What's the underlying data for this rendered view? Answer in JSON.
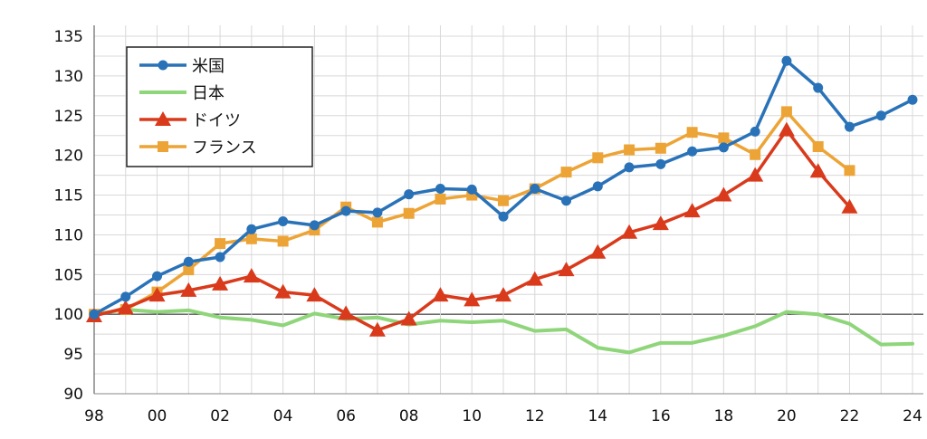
{
  "chart_data": {
    "type": "line",
    "title": "",
    "xlabel": "",
    "ylabel": "",
    "x": [
      "98",
      "99",
      "00",
      "01",
      "02",
      "03",
      "04",
      "05",
      "06",
      "07",
      "08",
      "09",
      "10",
      "11",
      "12",
      "13",
      "14",
      "15",
      "16",
      "17",
      "18",
      "19",
      "20",
      "21",
      "22",
      "23",
      "24"
    ],
    "x_tick_labels": [
      "98",
      "00",
      "02",
      "04",
      "06",
      "08",
      "10",
      "12",
      "14",
      "16",
      "18",
      "20",
      "22",
      "24"
    ],
    "y_ticks": [
      90,
      95,
      100,
      105,
      110,
      115,
      120,
      125,
      130,
      135
    ],
    "ylim": [
      90,
      135
    ],
    "grid": true,
    "legend_position": "top-left",
    "series": [
      {
        "name": "米国",
        "color": "#2a72b8",
        "marker": "circle",
        "values": [
          100,
          102.2,
          104.8,
          106.6,
          107.2,
          110.7,
          111.7,
          111.2,
          113.0,
          112.8,
          115.1,
          115.8,
          115.7,
          112.3,
          115.8,
          114.3,
          116.1,
          118.5,
          118.9,
          120.5,
          121.0,
          123.0,
          131.9,
          128.5,
          123.6,
          125.0,
          127.0
        ]
      },
      {
        "name": "日本",
        "color": "#8fd57a",
        "marker": "none",
        "values": [
          100,
          100.6,
          100.3,
          100.5,
          99.6,
          99.3,
          98.6,
          100.1,
          99.4,
          99.6,
          98.7,
          99.2,
          99.0,
          99.2,
          97.9,
          98.1,
          95.8,
          95.2,
          96.4,
          96.4,
          97.3,
          98.5,
          100.3,
          100.0,
          98.8,
          96.2,
          96.3
        ]
      },
      {
        "name": "ドイツ",
        "color": "#d93a1c",
        "marker": "triangle",
        "values": [
          99.8,
          100.8,
          102.4,
          103.0,
          103.8,
          104.8,
          102.8,
          102.4,
          100.1,
          98.0,
          99.4,
          102.4,
          101.8,
          102.4,
          104.4,
          105.6,
          107.8,
          110.3,
          111.4,
          113.0,
          115.0,
          117.5,
          123.2,
          118.0,
          113.5,
          null,
          null
        ]
      },
      {
        "name": "フランス",
        "color": "#eda437",
        "marker": "square",
        "values": [
          100,
          100.6,
          102.8,
          105.6,
          108.9,
          109.5,
          109.2,
          110.6,
          113.5,
          111.6,
          112.7,
          114.5,
          115.0,
          114.3,
          115.8,
          117.9,
          119.7,
          120.7,
          120.9,
          122.9,
          122.2,
          120.1,
          125.5,
          121.1,
          118.1,
          null,
          null
        ]
      }
    ]
  }
}
